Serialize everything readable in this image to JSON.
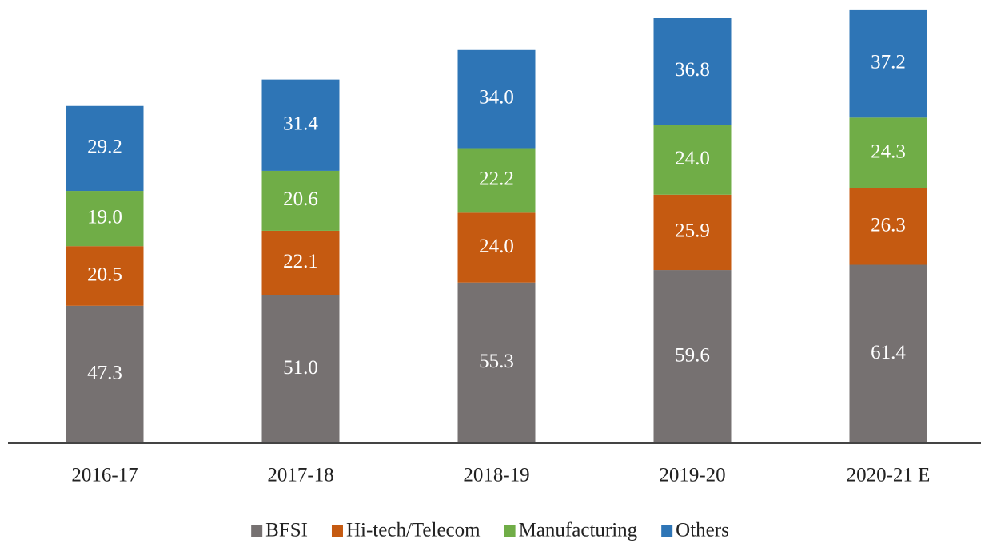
{
  "chart_data": {
    "type": "bar",
    "stacked": true,
    "categories": [
      "2016-17",
      "2017-18",
      "2018-19",
      "2019-20",
      "2020-21 E"
    ],
    "series": [
      {
        "name": "BFSI",
        "color": "#767171",
        "values": [
          47.3,
          51.0,
          55.3,
          59.6,
          61.4
        ],
        "value_labels": [
          "47.3",
          "51.0",
          "55.3",
          "59.6",
          "61.4"
        ]
      },
      {
        "name": "Hi-tech/Telecom",
        "color": "#c55a11",
        "values": [
          20.5,
          22.1,
          24.0,
          25.9,
          26.3
        ],
        "value_labels": [
          "20.5",
          "22.1",
          "24.0",
          "25.9",
          "26.3"
        ]
      },
      {
        "name": "Manufacturing",
        "color": "#70ad47",
        "values": [
          19.0,
          20.6,
          22.2,
          24.0,
          24.3
        ],
        "value_labels": [
          "19.0",
          "20.6",
          "22.2",
          "24.0",
          "24.3"
        ]
      },
      {
        "name": "Others",
        "color": "#2e75b6",
        "values": [
          29.2,
          31.4,
          34.0,
          36.8,
          37.2
        ],
        "value_labels": [
          "29.2",
          "31.4",
          "34.0",
          "36.8",
          "37.2"
        ]
      }
    ],
    "legend": "bottom"
  }
}
